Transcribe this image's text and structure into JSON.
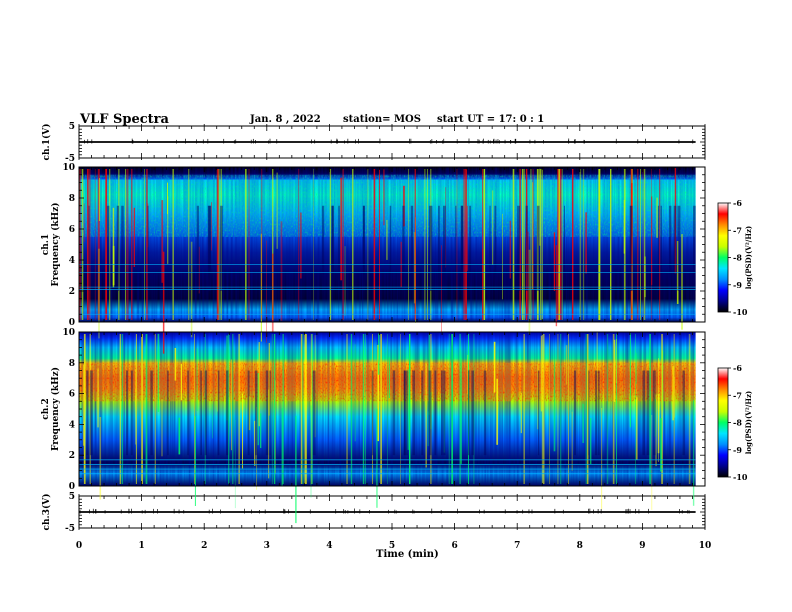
{
  "header": {
    "title": "VLF Spectra",
    "date": "Jan. 8 , 2022",
    "station": "station= MOS",
    "start_ut": "start UT =  17: 0 : 1"
  },
  "colors": {
    "background": "#ffffff",
    "axes": "#000000",
    "colormap": [
      "#000000",
      "#00008c",
      "#0000ff",
      "#0090ff",
      "#00e6ff",
      "#00ff64",
      "#c8ff00",
      "#ffff00",
      "#ff8c00",
      "#ff0000",
      "#ffffff"
    ]
  },
  "chart_data": [
    {
      "type": "line",
      "panel": "ch1-waveform",
      "ylabel": "ch.1(V)",
      "ylim": [
        -5,
        5
      ],
      "y_ticks": [
        "5",
        "-5"
      ],
      "x_range": [
        0,
        10
      ],
      "series": [
        {
          "x": [
            0,
            9.85
          ],
          "y": [
            0,
            0
          ]
        }
      ]
    },
    {
      "type": "heatmap",
      "panel": "ch1-spectrogram",
      "ylabel": "ch.1\nFrequency (kHz)",
      "ylim": [
        0,
        10
      ],
      "y_ticks": [
        "0",
        "2",
        "4",
        "6",
        "8",
        "10"
      ],
      "x_range": [
        0,
        10
      ],
      "data_extent_min": 9.85,
      "colorbar": {
        "label": "log(PSD)(V²/Hz)",
        "ticks": [
          "-6",
          "-7",
          "-8",
          "-9",
          "-10"
        ],
        "range": [
          -10,
          -6
        ]
      },
      "intense_band_khz": [
        5.5,
        9.5
      ]
    },
    {
      "type": "heatmap",
      "panel": "ch2-spectrogram",
      "ylabel": "ch.2\nFrequency (kHz)",
      "ylim": [
        0,
        10
      ],
      "y_ticks": [
        "0",
        "2",
        "4",
        "6",
        "8",
        "10"
      ],
      "x_range": [
        0,
        10
      ],
      "data_extent_min": 9.85,
      "colorbar": {
        "label": "log(PSD)(V²/Hz)",
        "ticks": [
          "-6",
          "-7",
          "-8",
          "-9",
          "-10"
        ],
        "range": [
          -10,
          -6
        ]
      },
      "intense_band_khz": [
        5.5,
        8.0
      ]
    },
    {
      "type": "line",
      "panel": "ch3-waveform",
      "ylabel": "ch.3(V)",
      "ylim": [
        -5,
        5
      ],
      "y_ticks": [
        "5",
        "-5"
      ],
      "x_range": [
        0,
        10
      ],
      "x_ticks": [
        "0",
        "1",
        "2",
        "3",
        "4",
        "5",
        "6",
        "7",
        "8",
        "9",
        "10"
      ],
      "xlabel": "Time (min)",
      "series": [
        {
          "x": [
            0,
            9.85
          ],
          "y": [
            0,
            0
          ]
        }
      ]
    }
  ]
}
